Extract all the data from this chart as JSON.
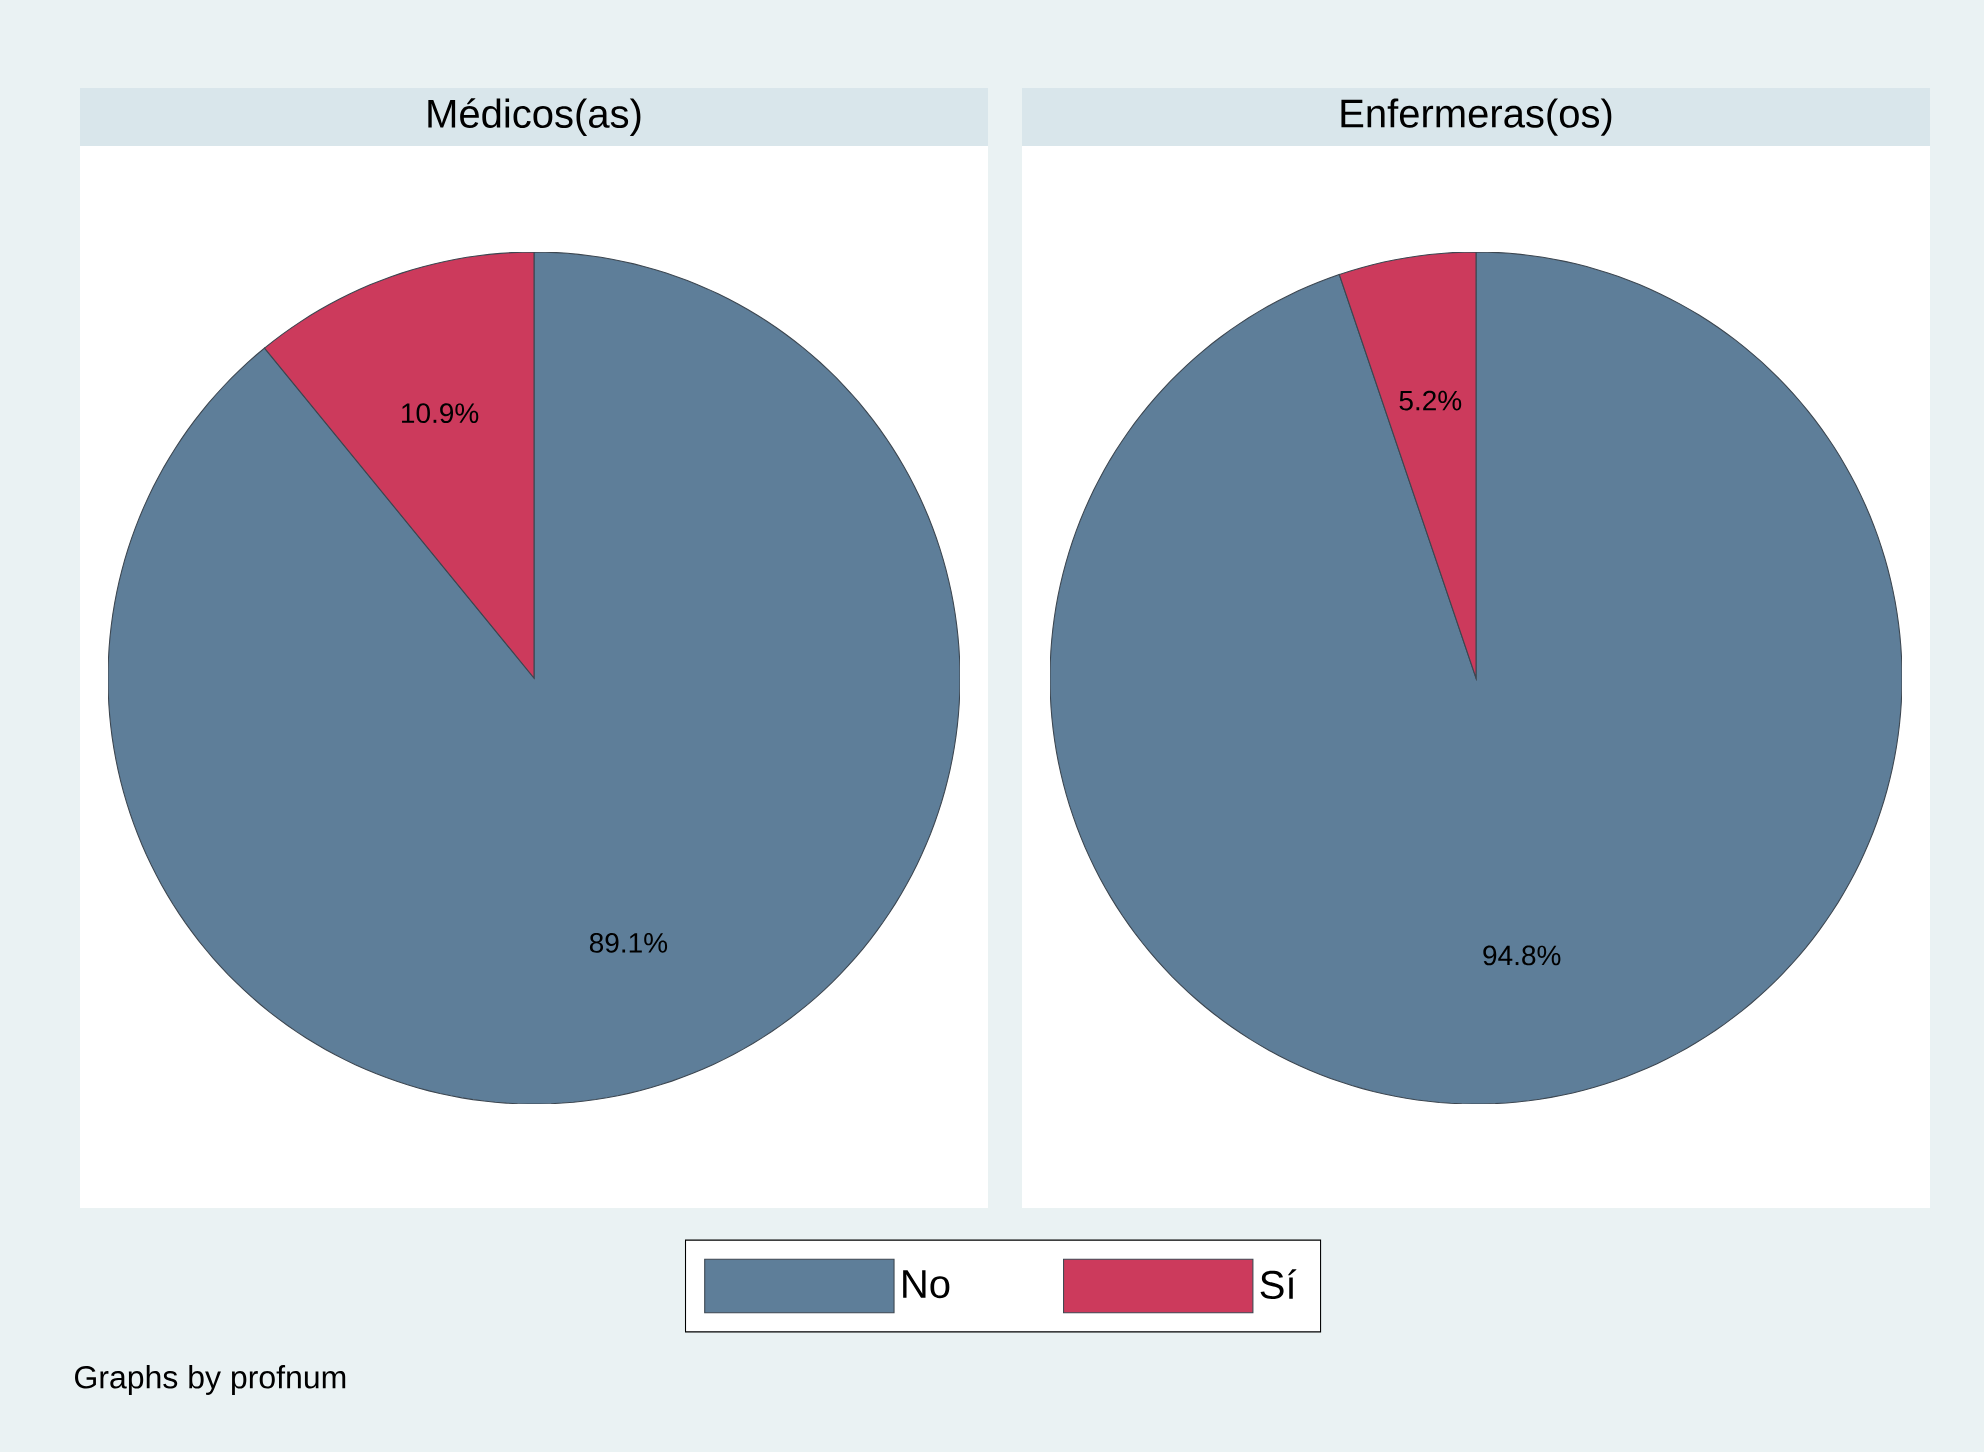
{
  "chart_data": [
    {
      "type": "pie",
      "title": "Médicos(as)",
      "categories": [
        "No",
        "Sí"
      ],
      "values": [
        89.1,
        10.9
      ],
      "value_labels": [
        "89.1%",
        "10.9%"
      ],
      "colors": [
        "#5e7e99",
        "#cc3a5c"
      ],
      "legend": "bottom",
      "annotations": [
        "Graphs by profnum"
      ]
    },
    {
      "type": "pie",
      "title": "Enfermeras(os)",
      "categories": [
        null,
        null
      ],
      "values": [
        94.8,
        5.2
      ],
      "value_labels": [
        "94.8%",
        "5.2%"
      ],
      "colors": [
        "#5e7e99",
        "#cc3a5c"
      ]
    }
  ]
}
